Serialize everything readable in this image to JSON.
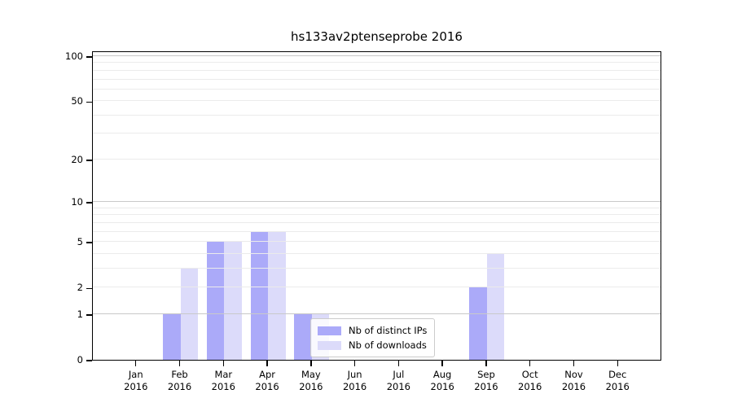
{
  "figure": {
    "title": "hs133av2ptenseprobe 2016"
  },
  "colors": {
    "distinct_ips_bar": "#abaaf9",
    "downloads_bar": "#dcdbfa",
    "grid_minor": "#ebebeb",
    "grid_decade": "#c9c9c9",
    "axis": "#000000",
    "legend_border": "#cccccc"
  },
  "chart_data": {
    "type": "bar",
    "title": "hs133av2ptenseprobe 2016",
    "categories": [
      "Jan 2016",
      "Feb 2016",
      "Mar 2016",
      "Apr 2016",
      "May 2016",
      "Jun 2016",
      "Jul 2016",
      "Aug 2016",
      "Sep 2016",
      "Oct 2016",
      "Nov 2016",
      "Dec 2016"
    ],
    "x_tick_line1": [
      "Jan",
      "Feb",
      "Mar",
      "Apr",
      "May",
      "Jun",
      "Jul",
      "Aug",
      "Sep",
      "Oct",
      "Nov",
      "Dec"
    ],
    "x_tick_line2": [
      "2016",
      "2016",
      "2016",
      "2016",
      "2016",
      "2016",
      "2016",
      "2016",
      "2016",
      "2016",
      "2016",
      "2016"
    ],
    "series": [
      {
        "name": "Nb of distinct IPs",
        "color": "#abaaf9",
        "values": [
          0,
          1,
          5,
          6,
          1,
          0,
          0,
          0,
          2,
          0,
          0,
          0
        ]
      },
      {
        "name": "Nb of downloads",
        "color": "#dcdbfa",
        "values": [
          0,
          3,
          5,
          6,
          1,
          0,
          0,
          0,
          4,
          0,
          0,
          0
        ]
      }
    ],
    "xlabel": "",
    "ylabel": "",
    "ylim": [
      0,
      100
    ],
    "y_scale": "log10(1+v)",
    "y_major_ticks": [
      0,
      1,
      2,
      5,
      10,
      20,
      50,
      100
    ],
    "y_decade_gridlines": [
      1,
      10,
      100
    ],
    "y_minor_gridlines": [
      3,
      4,
      6,
      7,
      8,
      9,
      30,
      40,
      60,
      70,
      80,
      90
    ],
    "grid": "both",
    "legend_position": "lower center (inside plot)"
  }
}
